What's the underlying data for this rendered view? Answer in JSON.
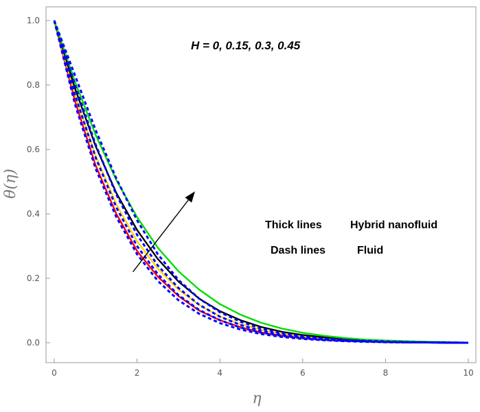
{
  "chart_data": {
    "type": "line",
    "xlabel": "η",
    "ylabel": "θ(η)",
    "xlim": [
      0,
      10
    ],
    "ylim": [
      0,
      1.0
    ],
    "xticks": [
      "0",
      "2",
      "4",
      "6",
      "8",
      "10"
    ],
    "yticks": [
      "0.0",
      "0.2",
      "0.4",
      "0.6",
      "0.8",
      "1.0"
    ],
    "grid": false,
    "annotations": {
      "parameter": "H = 0, 0.15, 0.3, 0.45",
      "legend_thick_key": "Thick lines",
      "legend_thick_value": "Hybrid nanofluid",
      "legend_dash_key": "Dash lines",
      "legend_dash_value": "Fluid"
    },
    "arrow": {
      "from": [
        1.9,
        0.22
      ],
      "to": [
        3.4,
        0.47
      ]
    },
    "x": [
      0,
      0.5,
      1,
      1.5,
      2,
      2.5,
      3,
      3.5,
      4,
      4.5,
      5,
      5.5,
      6,
      6.5,
      7,
      7.5,
      8,
      8.5,
      9,
      9.5,
      10
    ],
    "series": [
      {
        "style": "solid",
        "color": "#ff0000",
        "values": [
          1.0,
          0.75,
          0.55,
          0.4,
          0.285,
          0.205,
          0.145,
          0.1,
          0.07,
          0.048,
          0.032,
          0.022,
          0.015,
          0.01,
          0.007,
          0.005,
          0.003,
          0.002,
          0.0015,
          0.001,
          0.0
        ]
      },
      {
        "style": "solid",
        "color": "#ffd700",
        "values": [
          1.0,
          0.77,
          0.58,
          0.43,
          0.315,
          0.23,
          0.165,
          0.117,
          0.082,
          0.057,
          0.04,
          0.028,
          0.019,
          0.013,
          0.009,
          0.006,
          0.004,
          0.003,
          0.002,
          0.001,
          0.0
        ]
      },
      {
        "style": "solid",
        "color": "#000000",
        "values": [
          1.0,
          0.79,
          0.61,
          0.465,
          0.35,
          0.26,
          0.19,
          0.137,
          0.098,
          0.07,
          0.049,
          0.034,
          0.024,
          0.017,
          0.012,
          0.008,
          0.005,
          0.004,
          0.003,
          0.002,
          0.0
        ]
      },
      {
        "style": "solid",
        "color": "#00dd00",
        "values": [
          1.0,
          0.81,
          0.645,
          0.505,
          0.39,
          0.295,
          0.222,
          0.165,
          0.12,
          0.087,
          0.062,
          0.044,
          0.031,
          0.022,
          0.015,
          0.01,
          0.007,
          0.005,
          0.003,
          0.002,
          0.0
        ]
      },
      {
        "style": "dashed",
        "color": "#0000ff",
        "values": [
          1.0,
          0.74,
          0.54,
          0.39,
          0.275,
          0.192,
          0.132,
          0.09,
          0.061,
          0.041,
          0.027,
          0.018,
          0.012,
          0.008,
          0.005,
          0.003,
          0.002,
          0.001,
          0.001,
          0.0,
          0.0
        ]
      },
      {
        "style": "dashed",
        "color": "#0000ff",
        "values": [
          1.0,
          0.77,
          0.575,
          0.42,
          0.3,
          0.213,
          0.148,
          0.102,
          0.07,
          0.047,
          0.031,
          0.021,
          0.014,
          0.009,
          0.006,
          0.004,
          0.002,
          0.001,
          0.001,
          0.0,
          0.0
        ]
      },
      {
        "style": "dashed",
        "color": "#0000ff",
        "values": [
          1.0,
          0.8,
          0.615,
          0.46,
          0.335,
          0.24,
          0.17,
          0.118,
          0.081,
          0.055,
          0.037,
          0.025,
          0.017,
          0.011,
          0.007,
          0.005,
          0.003,
          0.002,
          0.001,
          0.0,
          0.0
        ]
      },
      {
        "style": "dashed",
        "color": "#0000ff",
        "values": [
          1.0,
          0.83,
          0.66,
          0.51,
          0.38,
          0.275,
          0.195,
          0.137,
          0.095,
          0.065,
          0.044,
          0.03,
          0.02,
          0.013,
          0.009,
          0.006,
          0.004,
          0.002,
          0.001,
          0.001,
          0.0
        ]
      }
    ]
  }
}
